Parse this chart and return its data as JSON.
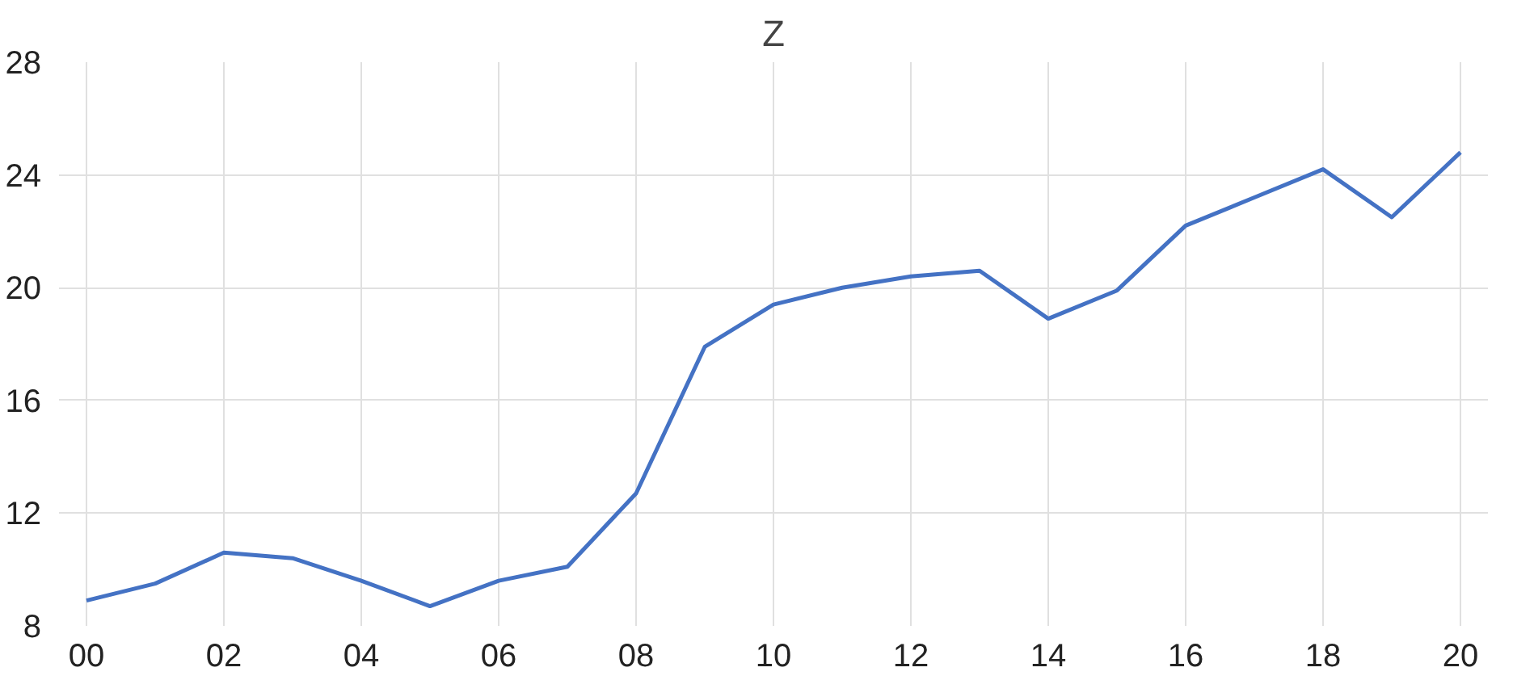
{
  "chart_data": {
    "type": "line",
    "title": "Z",
    "x": [
      0,
      1,
      2,
      3,
      4,
      5,
      6,
      7,
      8,
      9,
      10,
      11,
      12,
      13,
      14,
      15,
      16,
      17,
      18,
      19,
      20
    ],
    "series": [
      {
        "color": "#4472c4",
        "values": [
          8.9,
          9.5,
          10.6,
          10.4,
          9.6,
          8.7,
          9.6,
          10.1,
          12.7,
          17.9,
          19.4,
          20.0,
          20.4,
          20.6,
          18.9,
          19.9,
          22.2,
          23.2,
          24.2,
          22.5,
          24.8
        ]
      }
    ],
    "xlim": [
      -0.4,
      20.4
    ],
    "xticks": [
      {
        "value": 0,
        "label": "00"
      },
      {
        "value": 2,
        "label": "02"
      },
      {
        "value": 4,
        "label": "04"
      },
      {
        "value": 6,
        "label": "06"
      },
      {
        "value": 8,
        "label": "08"
      },
      {
        "value": 10,
        "label": "10"
      },
      {
        "value": 12,
        "label": "12"
      },
      {
        "value": 14,
        "label": "14"
      },
      {
        "value": 16,
        "label": "16"
      },
      {
        "value": 18,
        "label": "18"
      },
      {
        "value": 20,
        "label": "20"
      }
    ],
    "ylim": [
      8,
      28
    ],
    "yticks": [
      8,
      12,
      16,
      20,
      24,
      28
    ],
    "grid": true,
    "marker": "none",
    "line_style": "solid"
  }
}
